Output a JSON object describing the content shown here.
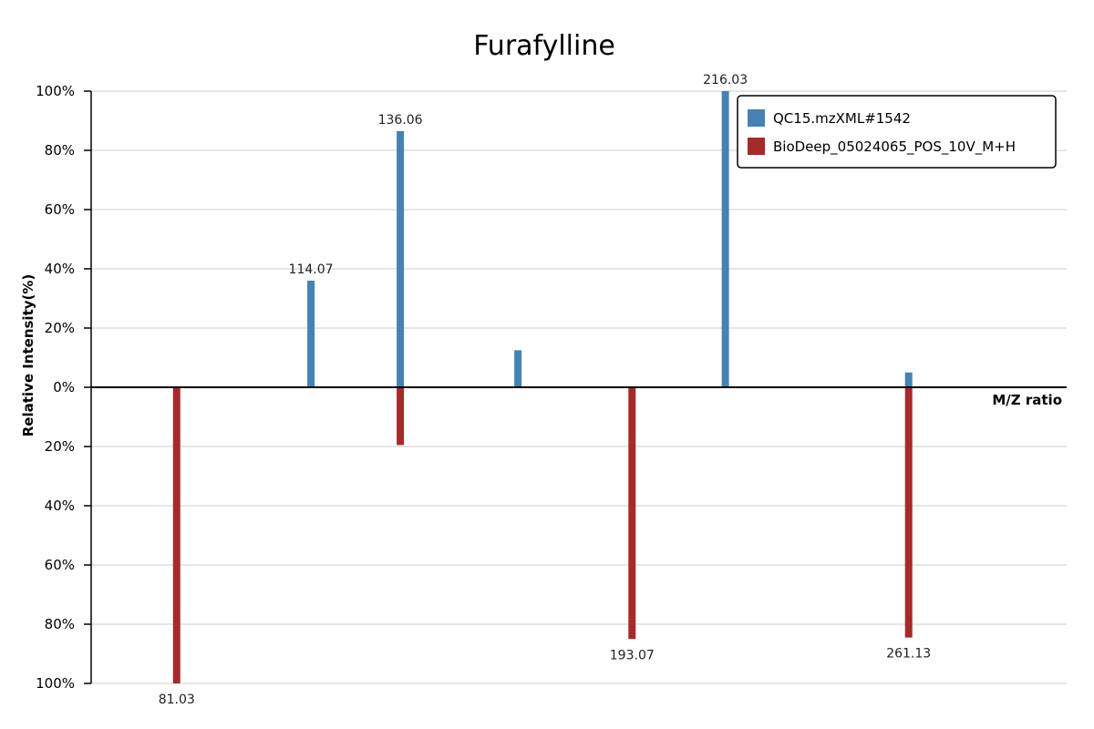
{
  "chart_data": {
    "type": "bar",
    "title": "Furafylline",
    "ylabel": "Relative Intensity(%)",
    "xlabel": "M/Z ratio",
    "xlim": [
      60,
      300
    ],
    "ylim": [
      -100,
      100
    ],
    "y_ticks": [
      {
        "value": 100,
        "label": "100%"
      },
      {
        "value": 80,
        "label": "80%"
      },
      {
        "value": 60,
        "label": "60%"
      },
      {
        "value": 40,
        "label": "40%"
      },
      {
        "value": 20,
        "label": "20%"
      },
      {
        "value": 0,
        "label": "0%"
      },
      {
        "value": -20,
        "label": "20%"
      },
      {
        "value": -40,
        "label": "40%"
      },
      {
        "value": -60,
        "label": "60%"
      },
      {
        "value": -80,
        "label": "80%"
      },
      {
        "value": -100,
        "label": "100%"
      }
    ],
    "grid": true,
    "legend_position": "top-right",
    "series": [
      {
        "name": "QC15.mzXML#1542",
        "color": "#4682b4",
        "direction": "up",
        "points": [
          {
            "x": 114.07,
            "y": 36,
            "label": "114.07"
          },
          {
            "x": 136.06,
            "y": 86.5,
            "label": "136.06"
          },
          {
            "x": 165.0,
            "y": 12.5,
            "label": ""
          },
          {
            "x": 216.03,
            "y": 100,
            "label": "216.03"
          },
          {
            "x": 261.13,
            "y": 5,
            "label": ""
          }
        ]
      },
      {
        "name": "BioDeep_05024065_POS_10V_M+H",
        "color": "#a52a2a",
        "direction": "down",
        "points": [
          {
            "x": 81.03,
            "y": 100,
            "label": "81.03"
          },
          {
            "x": 136.06,
            "y": 19.5,
            "label": ""
          },
          {
            "x": 193.07,
            "y": 85,
            "label": "193.07"
          },
          {
            "x": 261.13,
            "y": 84.5,
            "label": "261.13"
          }
        ]
      }
    ]
  }
}
